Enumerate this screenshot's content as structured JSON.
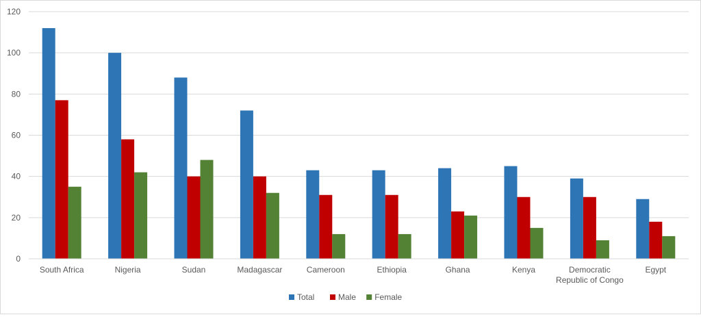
{
  "chart_data": {
    "type": "bar",
    "title": "",
    "xlabel": "",
    "ylabel": "",
    "ylim": [
      0,
      120
    ],
    "yticks": [
      0,
      20,
      40,
      60,
      80,
      100,
      120
    ],
    "grid": true,
    "legend_position": "bottom-center",
    "categories": [
      [
        "South Africa"
      ],
      [
        "Nigeria"
      ],
      [
        "Sudan"
      ],
      [
        "Madagascar"
      ],
      [
        "Cameroon"
      ],
      [
        "Ethiopia"
      ],
      [
        "Ghana"
      ],
      [
        "Kenya"
      ],
      [
        "Democratic",
        "Republic of Congo"
      ],
      [
        "Egypt"
      ]
    ],
    "series": [
      {
        "name": "Total",
        "color": "#2e75b6",
        "values": [
          112,
          100,
          88,
          72,
          43,
          43,
          44,
          45,
          39,
          29
        ]
      },
      {
        "name": "Male",
        "color": "#c00000",
        "values": [
          77,
          58,
          40,
          40,
          31,
          31,
          23,
          30,
          30,
          18
        ]
      },
      {
        "name": "Female",
        "color": "#548235",
        "values": [
          35,
          42,
          48,
          32,
          12,
          12,
          21,
          15,
          9,
          11
        ]
      }
    ]
  }
}
